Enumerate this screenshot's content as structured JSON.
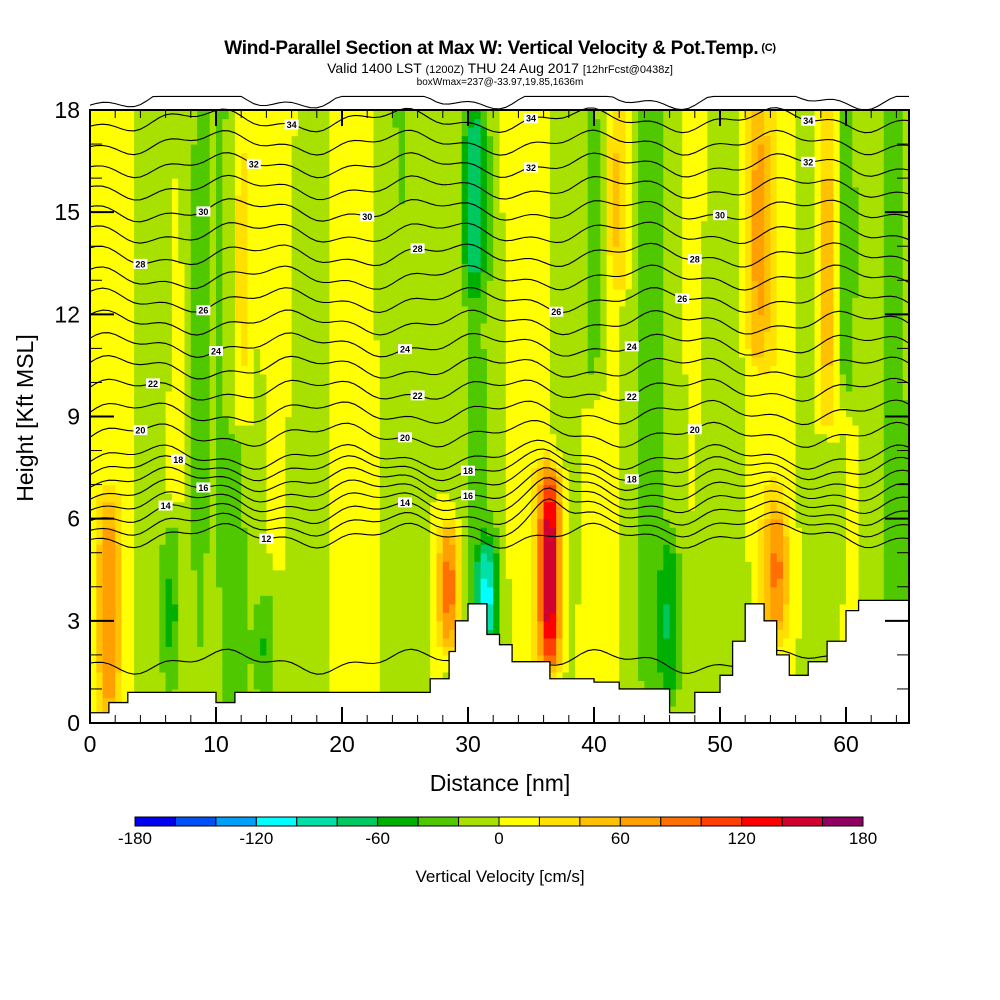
{
  "header": {
    "title": "Wind-Parallel Section at Max W: Vertical Velocity & Pot.Temp.",
    "title_suffix": "(C)",
    "subtitle_a": "Valid 1400 LST",
    "subtitle_b": "(1200Z)",
    "subtitle_c": "THU 24 Aug 2017",
    "subtitle_d": "[12hrFcst@0438z]",
    "info": "boxWmax=237@-33.97,19.85,1636m"
  },
  "chart_data": {
    "type": "heatmap",
    "title": "Wind-Parallel Section at Max W: Vertical Velocity & Pot.Temp.",
    "xlabel": "Distance [nm]",
    "ylabel": "Height [Kft MSL]",
    "xlim": [
      0,
      65
    ],
    "ylim": [
      0,
      18
    ],
    "x_ticks": [
      0,
      10,
      20,
      30,
      40,
      50,
      60
    ],
    "y_ticks": [
      0,
      3,
      6,
      9,
      12,
      15,
      18
    ],
    "x_minor_step": 2,
    "y_minor_step": 1,
    "colorbar": {
      "label": "Vertical Velocity [cm/s]",
      "ticks": [
        -180,
        -120,
        -60,
        0,
        60,
        120,
        180
      ],
      "levels": [
        -180,
        -160,
        -140,
        -120,
        -100,
        -80,
        -60,
        -40,
        -20,
        0,
        20,
        40,
        60,
        80,
        100,
        120,
        140,
        160,
        180
      ],
      "colors": [
        "#0000f0",
        "#0050f8",
        "#00a0f8",
        "#00ffff",
        "#00e0a8",
        "#00c860",
        "#00b000",
        "#50c800",
        "#a8e000",
        "#ffff00",
        "#ffe000",
        "#ffc000",
        "#ffa000",
        "#ff7000",
        "#ff4000",
        "#ff0000",
        "#d00030",
        "#900060"
      ],
      "placement": "bottom"
    },
    "contours": {
      "variable": "Potential Temperature",
      "interval": 1,
      "label_interval": 2,
      "labels": [
        12,
        14,
        16,
        18,
        20,
        22,
        24,
        26,
        28,
        30,
        32,
        34
      ]
    },
    "w_columns": [
      {
        "x": 1.5,
        "zmin": 0.5,
        "zmax": 6.0,
        "w": 70
      },
      {
        "x": 6.5,
        "zmin": 1.0,
        "zmax": 5.5,
        "w": -50
      },
      {
        "x": 8.5,
        "zmin": 0.5,
        "zmax": 18.0,
        "w": -30
      },
      {
        "x": 12.0,
        "zmin": 9.0,
        "zmax": 18.0,
        "w": 50
      },
      {
        "x": 14.0,
        "zmin": 1.0,
        "zmax": 3.5,
        "w": -40
      },
      {
        "x": 28.5,
        "zmin": 2.5,
        "zmax": 5.5,
        "w": 100
      },
      {
        "x": 30.5,
        "zmin": 13.0,
        "zmax": 18.0,
        "w": -60
      },
      {
        "x": 31.5,
        "zmin": 2.5,
        "zmax": 5.0,
        "w": -90
      },
      {
        "x": 36.5,
        "zmin": 2.0,
        "zmax": 7.0,
        "w": 170
      },
      {
        "x": 40.0,
        "zmin": 10.0,
        "zmax": 18.0,
        "w": -40
      },
      {
        "x": 42.0,
        "zmin": 13.0,
        "zmax": 18.0,
        "w": 50
      },
      {
        "x": 46.0,
        "zmin": 1.0,
        "zmax": 5.0,
        "w": -50
      },
      {
        "x": 53.0,
        "zmin": 11.0,
        "zmax": 18.0,
        "w": 60
      },
      {
        "x": 54.5,
        "zmin": 3.0,
        "zmax": 6.0,
        "w": 70
      },
      {
        "x": 58.5,
        "zmin": 9.0,
        "zmax": 18.0,
        "w": 70
      },
      {
        "x": 60.0,
        "zmin": 10.0,
        "zmax": 18.0,
        "w": -40
      }
    ],
    "terrain_kft": [
      [
        0,
        0.3
      ],
      [
        1.5,
        0.6
      ],
      [
        3,
        0.9
      ],
      [
        9,
        0.9
      ],
      [
        10,
        0.6
      ],
      [
        11.5,
        0.9
      ],
      [
        20,
        0.9
      ],
      [
        22.5,
        0.9
      ],
      [
        27,
        1.3
      ],
      [
        28.5,
        2.1
      ],
      [
        29,
        3.0
      ],
      [
        30,
        3.5
      ],
      [
        31,
        3.5
      ],
      [
        31.5,
        2.6
      ],
      [
        32.5,
        2.3
      ],
      [
        33.5,
        1.8
      ],
      [
        34.5,
        1.8
      ],
      [
        36.5,
        1.3
      ],
      [
        38,
        1.3
      ],
      [
        40,
        1.2
      ],
      [
        42,
        1.0
      ],
      [
        45,
        1.0
      ],
      [
        46,
        0.3
      ],
      [
        48,
        0.9
      ],
      [
        50,
        1.4
      ],
      [
        51,
        2.4
      ],
      [
        52,
        3.5
      ],
      [
        53.5,
        3.0
      ],
      [
        54.5,
        2.0
      ],
      [
        55.5,
        1.4
      ],
      [
        57,
        1.8
      ],
      [
        58.5,
        2.4
      ],
      [
        60,
        3.3
      ],
      [
        61,
        3.6
      ],
      [
        65,
        3.6
      ]
    ]
  },
  "colorbar_ticks": [
    "-180",
    "-120",
    "-60",
    "0",
    "60",
    "120",
    "180"
  ],
  "y_tick_labels": [
    "0",
    "3",
    "6",
    "9",
    "12",
    "15",
    "18"
  ],
  "x_tick_labels": [
    "0",
    "10",
    "20",
    "30",
    "40",
    "50",
    "60"
  ]
}
